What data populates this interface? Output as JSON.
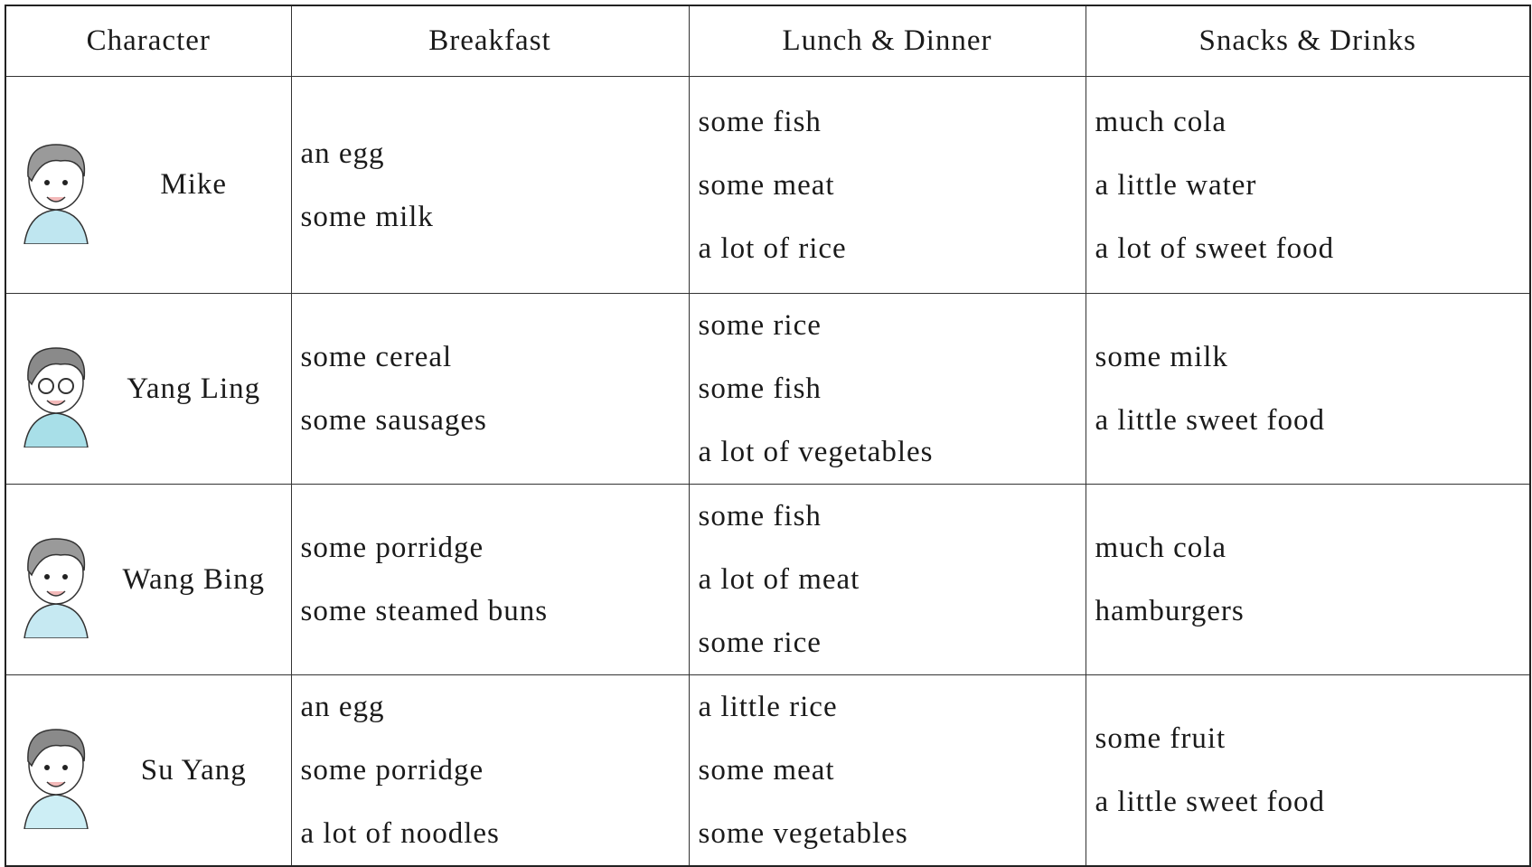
{
  "table": {
    "header": [
      "Character",
      "Breakfast",
      "Lunch & Dinner",
      "Snacks & Drinks"
    ],
    "rows": [
      [
        "Mike",
        [
          "an egg",
          "some milk"
        ],
        [
          "some fish",
          "some meat",
          "a lot of rice"
        ],
        [
          "much cola",
          "a little water",
          "a lot of sweet food"
        ]
      ],
      [
        "Yang Ling",
        [
          "some cereal",
          "some sausages"
        ],
        [
          "some rice",
          "some fish",
          "a lot of vegetables"
        ],
        [
          "some milk",
          "a little sweet food"
        ]
      ],
      [
        "Wang Bing",
        [
          "some porridge",
          "some steamed buns"
        ],
        [
          "some fish",
          "a lot of meat",
          "some rice"
        ],
        [
          "much cola",
          "hamburgers"
        ]
      ],
      [
        "Su Yang",
        [
          "an egg",
          "some porridge",
          "a lot of noodles"
        ],
        [
          "a little rice",
          "some meat",
          "some vegetables"
        ],
        [
          "some fruit",
          "a little sweet food"
        ]
      ]
    ]
  }
}
